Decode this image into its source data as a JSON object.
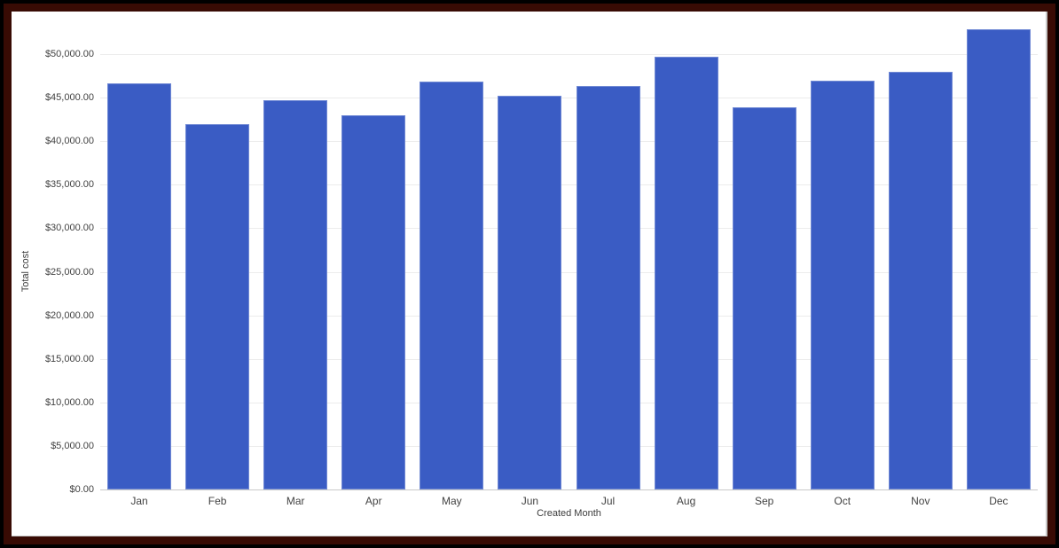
{
  "chart_data": {
    "type": "bar",
    "title": "",
    "xlabel": "Created Month",
    "ylabel": "Total cost",
    "categories": [
      "Jan",
      "Feb",
      "Mar",
      "Apr",
      "May",
      "Jun",
      "Jul",
      "Aug",
      "Sep",
      "Oct",
      "Nov",
      "Dec"
    ],
    "values": [
      46600,
      42000,
      44700,
      43000,
      46800,
      45200,
      46300,
      49700,
      43900,
      46900,
      48000,
      52900
    ],
    "ylim": [
      0,
      50000
    ],
    "y_tick_step": 5000,
    "y_tick_labels_top_to_bottom": [
      "$50,000.00",
      "$45,000.00",
      "$40,000.00",
      "$35,000.00",
      "$30,000.00",
      "$25,000.00",
      "$20,000.00",
      "$15,000.00",
      "$10,000.00",
      "$5,000.00",
      "$0.00"
    ],
    "grid": true,
    "legend": "none",
    "bar_color": "#3A5CC4",
    "gridline_color": "#ececec",
    "baseline_color": "#c9c9c9",
    "text_color": "#424242",
    "frame_outer_color": "#000000",
    "frame_inner_color": "#380B04",
    "background_color": "#ffffff"
  }
}
